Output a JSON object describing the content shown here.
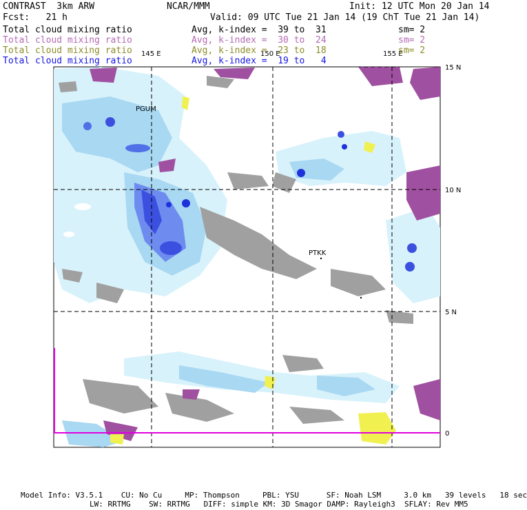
{
  "header": {
    "model": "CONTRAST  3km ARW",
    "center": "NCAR/MMM",
    "init": "Init: 12 UTC Mon 20 Jan 14",
    "fcst": "Fcst:   21 h",
    "valid": "Valid: 09 UTC Tue 21 Jan 14 (19 ChT Tue 21 Jan 14)"
  },
  "fields": [
    {
      "name": "Total cloud mixing ratio",
      "avg": "Avg, k-index =  39 to  31",
      "sm": "sm= 2",
      "color": "#000000"
    },
    {
      "name": "Total cloud mixing ratio",
      "avg": "Avg, k-index =  30 to  24",
      "sm": "sm= 2",
      "color": "#b46ab4"
    },
    {
      "name": "Total cloud mixing ratio",
      "avg": "Avg, k-index =  23 to  18",
      "sm": "sm= 2",
      "color": "#8c8c28"
    },
    {
      "name": "Total cloud mixing ratio",
      "avg": "Avg, k-index =  19 to   4",
      "sm": "",
      "color": "#1414e6"
    }
  ],
  "map": {
    "lon_labels": [
      "145 E",
      "150 E",
      "155 E"
    ],
    "lat_labels": [
      "15 N",
      "10 N",
      "5 N",
      "0"
    ],
    "stations": [
      "PGUM",
      "PTKK"
    ],
    "colors": {
      "gray": "#a0a0a0",
      "purple": "#a050a0",
      "yellow": "#f0f050",
      "lightcyan": "#d2f0fa",
      "lightblue": "#a0d2f0",
      "blue": "#6e8cf0",
      "darkblue": "#1e32dc",
      "equator_line": "#e000e0"
    }
  },
  "footer": {
    "line1": "Model Info: V3.5.1    CU: No Cu     MP: Thompson     PBL: YSU      SF: Noah LSM     3.0 km   39 levels   18 sec",
    "line2": "LW: RRTMG    SW: RRTMG   DIFF: simple KM: 3D Smagor DAMP: Rayleigh3  SFLAY: Rev MM5"
  }
}
